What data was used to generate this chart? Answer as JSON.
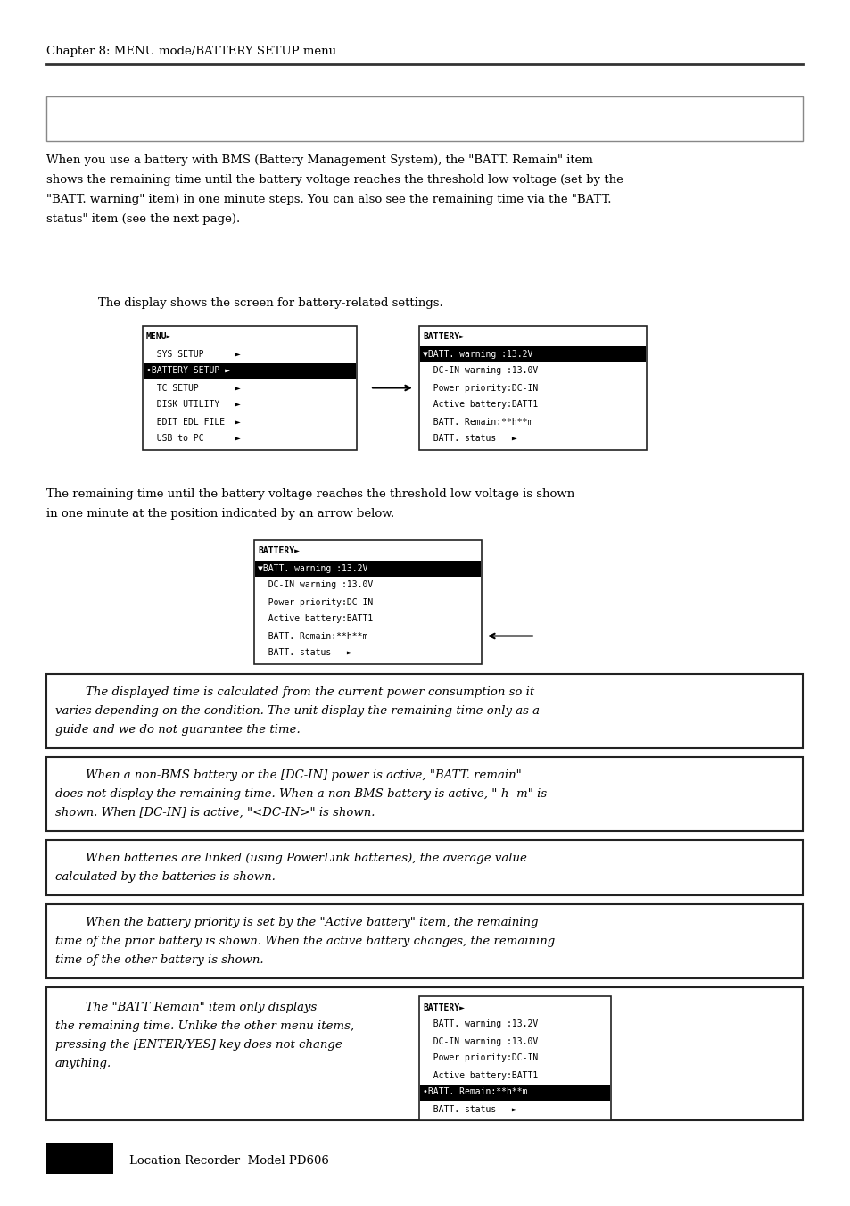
{
  "chapter_header": "Chapter 8: MENU mode/BATTERY SETUP menu",
  "para1_lines": [
    "When you use a battery with BMS (Battery Management System), the \"BATT. Remain\" item",
    "shows the remaining time until the battery voltage reaches the threshold low voltage (set by the",
    "\"BATT. warning\" item) in one minute steps. You can also see the remaining time via the \"BATT.",
    "status\" item (see the next page)."
  ],
  "caption1": "The display shows the screen for battery-related settings.",
  "menu_lines": [
    "MENU►",
    "  SYS SETUP      ►",
    "•BATTERY SETUP ►",
    "  TC SETUP       ►",
    "  DISK UTILITY   ►",
    "  EDIT EDL FILE  ►",
    "  USB to PC      ►"
  ],
  "menu_selected": 2,
  "batt1_lines": [
    "BATTERY►",
    "▼BATT. warning :13.2V",
    "  DC-IN warning :13.0V",
    "  Power priority:DC-IN",
    "  Active battery:BATT1",
    "  BATT. Remain:**h**m",
    "  BATT. status   ►"
  ],
  "batt1_selected": 1,
  "caption2_lines": [
    "The remaining time until the battery voltage reaches the threshold low voltage is shown",
    "in one minute at the position indicated by an arrow below."
  ],
  "batt2_lines": [
    "BATTERY►",
    "▼BATT. warning :13.2V",
    "  DC-IN warning :13.0V",
    "  Power priority:DC-IN",
    "  Active battery:BATT1",
    "  BATT. Remain:**h**m",
    "  BATT. status   ►"
  ],
  "batt2_selected": 1,
  "batt2_arrow_row": 5,
  "note1_lines": [
    "        The displayed time is calculated from the current power consumption so it",
    "varies depending on the condition. The unit display the remaining time only as a",
    "guide and we do not guarantee the time."
  ],
  "note2_lines": [
    "        When a non-BMS battery or the [DC-IN] power is active, \"BATT. remain\"",
    "does not display the remaining time. When a non-BMS battery is active, \"-h -m\" is",
    "shown. When [DC-IN] is active, \"<DC-IN>\" is shown."
  ],
  "note3_lines": [
    "        When batteries are linked (using PowerLink batteries), the average value",
    "calculated by the batteries is shown."
  ],
  "note4_lines": [
    "        When the battery priority is set by the \"Active battery\" item, the remaining",
    "time of the prior battery is shown. When the active battery changes, the remaining",
    "time of the other battery is shown."
  ],
  "note5_text_lines": [
    "        The \"BATT Remain\" item only displays",
    "the remaining time. Unlike the other menu items,",
    "pressing the [ENTER/YES] key does not change",
    "anything."
  ],
  "batt3_lines": [
    "BATTERY►",
    "  BATT. warning :13.2V",
    "  DC-IN warning :13.0V",
    "  Power priority:DC-IN",
    "  Active battery:BATT1",
    "•BATT. Remain:**h**m",
    "  BATT. status   ►"
  ],
  "batt3_selected": 5,
  "footer_text": "Location Recorder  Model PD606"
}
